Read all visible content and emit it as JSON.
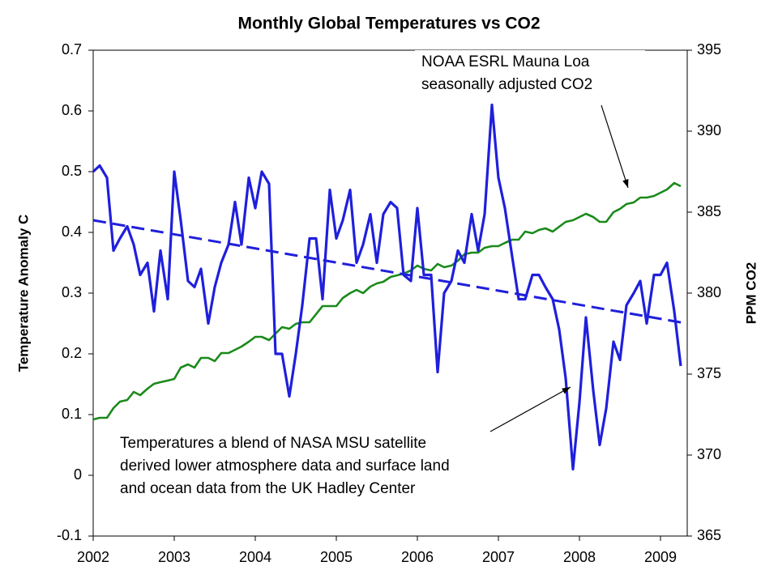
{
  "chart_data": {
    "type": "line",
    "title": "Monthly Global Temperatures vs CO2",
    "ylabel": "Temperature Anomaly C",
    "y2label": "PPM CO2",
    "xlim": [
      2002,
      2009.33
    ],
    "xticks": [
      2002,
      2003,
      2004,
      2005,
      2006,
      2007,
      2008,
      2009
    ],
    "ylim": [
      -0.1,
      0.7
    ],
    "yticks": [
      -0.1,
      0,
      0.1,
      0.2,
      0.3,
      0.4,
      0.5,
      0.6,
      0.7
    ],
    "y2lim": [
      365,
      395
    ],
    "y2ticks": [
      365,
      370,
      375,
      380,
      385,
      390,
      395
    ],
    "grid": false,
    "x": [
      2002.0,
      2002.08,
      2002.17,
      2002.25,
      2002.33,
      2002.42,
      2002.5,
      2002.58,
      2002.67,
      2002.75,
      2002.83,
      2002.92,
      2003.0,
      2003.08,
      2003.17,
      2003.25,
      2003.33,
      2003.42,
      2003.5,
      2003.58,
      2003.67,
      2003.75,
      2003.83,
      2003.92,
      2004.0,
      2004.08,
      2004.17,
      2004.25,
      2004.33,
      2004.42,
      2004.5,
      2004.58,
      2004.67,
      2004.75,
      2004.83,
      2004.92,
      2005.0,
      2005.08,
      2005.17,
      2005.25,
      2005.33,
      2005.42,
      2005.5,
      2005.58,
      2005.67,
      2005.75,
      2005.83,
      2005.92,
      2006.0,
      2006.08,
      2006.17,
      2006.25,
      2006.33,
      2006.42,
      2006.5,
      2006.58,
      2006.67,
      2006.75,
      2006.83,
      2006.92,
      2007.0,
      2007.08,
      2007.17,
      2007.25,
      2007.33,
      2007.42,
      2007.5,
      2007.58,
      2007.67,
      2007.75,
      2007.83,
      2007.92,
      2008.0,
      2008.08,
      2008.17,
      2008.25,
      2008.33,
      2008.42,
      2008.5,
      2008.58,
      2008.67,
      2008.75,
      2008.83,
      2008.92,
      2009.0,
      2009.08,
      2009.17,
      2009.25
    ],
    "series": [
      {
        "color": "#1f1fdc",
        "axis": "y",
        "values": [
          0.5,
          0.51,
          0.49,
          0.37,
          0.39,
          0.41,
          0.38,
          0.33,
          0.35,
          0.27,
          0.37,
          0.29,
          0.5,
          0.42,
          0.32,
          0.31,
          0.34,
          0.25,
          0.31,
          0.35,
          0.38,
          0.45,
          0.38,
          0.49,
          0.44,
          0.5,
          0.48,
          0.2,
          0.2,
          0.13,
          0.2,
          0.28,
          0.39,
          0.39,
          0.29,
          0.47,
          0.39,
          0.42,
          0.47,
          0.35,
          0.38,
          0.43,
          0.35,
          0.43,
          0.45,
          0.44,
          0.33,
          0.32,
          0.44,
          0.33,
          0.33,
          0.17,
          0.3,
          0.32,
          0.37,
          0.35,
          0.43,
          0.37,
          0.43,
          0.61,
          0.49,
          0.44,
          0.36,
          0.29,
          0.29,
          0.33,
          0.33,
          0.31,
          0.29,
          0.24,
          0.16,
          0.01,
          0.12,
          0.26,
          0.14,
          0.05,
          0.11,
          0.22,
          0.19,
          0.28,
          0.3,
          0.32,
          0.25,
          0.33,
          0.33,
          0.35,
          0.27,
          0.18
        ]
      },
      {
        "color": "#1a8a1a",
        "axis": "y2",
        "values": [
          372.2,
          372.3,
          372.3,
          372.9,
          373.3,
          373.4,
          373.9,
          373.7,
          374.1,
          374.4,
          374.5,
          374.6,
          374.7,
          375.4,
          375.6,
          375.4,
          376.0,
          376.0,
          375.8,
          376.3,
          376.3,
          376.5,
          376.7,
          377.0,
          377.3,
          377.3,
          377.1,
          377.5,
          377.9,
          377.8,
          378.1,
          378.2,
          378.2,
          378.7,
          379.2,
          379.2,
          379.2,
          379.7,
          380.0,
          380.2,
          380.0,
          380.4,
          380.6,
          380.7,
          381.0,
          381.1,
          381.2,
          381.4,
          381.7,
          381.5,
          381.4,
          381.8,
          381.6,
          381.7,
          382.0,
          382.4,
          382.5,
          382.5,
          382.8,
          382.9,
          382.9,
          383.1,
          383.3,
          383.3,
          383.8,
          383.7,
          383.9,
          384.0,
          383.8,
          384.1,
          384.4,
          384.5,
          384.7,
          384.9,
          384.7,
          384.4,
          384.4,
          385.0,
          385.2,
          385.5,
          385.6,
          385.9,
          385.9,
          386.0,
          386.2,
          386.4,
          386.8,
          386.6
        ]
      }
    ],
    "trend": {
      "color": "#1f1fdc",
      "dashed": true,
      "x": [
        2002,
        2009.33
      ],
      "values": [
        0.42,
        0.25
      ]
    },
    "annotations": [
      {
        "lines": [
          "NOAA ESRL Mauna Loa",
          "seasonally adjusted CO2"
        ]
      },
      {
        "lines": [
          "Temperatures a blend of NASA MSU satellite",
          "derived lower atmosphere data and surface land",
          "and ocean data from the UK Hadley Center"
        ]
      }
    ]
  }
}
